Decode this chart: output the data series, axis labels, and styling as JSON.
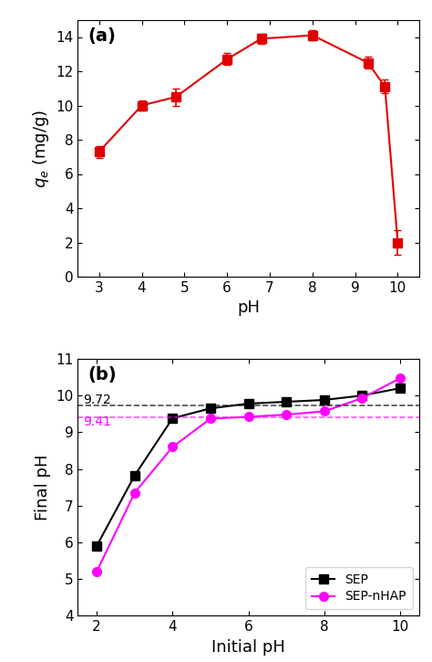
{
  "panel_a": {
    "x": [
      3,
      4,
      4.8,
      6,
      6.8,
      8,
      9.3,
      9.7,
      10
    ],
    "y": [
      7.3,
      10.0,
      10.5,
      12.7,
      13.9,
      14.1,
      12.5,
      11.1,
      2.0
    ],
    "yerr": [
      0.35,
      0.3,
      0.5,
      0.35,
      0.3,
      0.3,
      0.35,
      0.4,
      0.7
    ],
    "color": "#e00000",
    "marker": "s",
    "markersize": 7,
    "linewidth": 1.5,
    "xlabel": "pH",
    "ylabel": "q_e (mg/g)",
    "xlim": [
      2.5,
      10.5
    ],
    "ylim": [
      0,
      15
    ],
    "yticks": [
      0,
      2,
      4,
      6,
      8,
      10,
      12,
      14
    ],
    "xticks": [
      3,
      4,
      5,
      6,
      7,
      8,
      9,
      10
    ],
    "label": "(a)"
  },
  "panel_b": {
    "sep_x": [
      2,
      3,
      4,
      5,
      6,
      7,
      8,
      9,
      10
    ],
    "sep_y": [
      5.9,
      7.82,
      9.38,
      9.65,
      9.78,
      9.83,
      9.88,
      10.0,
      10.2
    ],
    "nhap_x": [
      2,
      3,
      4,
      5,
      6,
      7,
      8,
      9,
      10
    ],
    "nhap_y": [
      5.2,
      7.35,
      8.6,
      9.37,
      9.42,
      9.48,
      9.57,
      9.93,
      10.47
    ],
    "sep_color": "#000000",
    "nhap_color": "#ff00ff",
    "sep_marker": "s",
    "nhap_marker": "o",
    "markersize": 7,
    "linewidth": 1.5,
    "xlabel": "Initial pH",
    "ylabel": "Final pH",
    "xlim": [
      1.5,
      10.5
    ],
    "ylim": [
      4,
      11
    ],
    "yticks": [
      4,
      5,
      6,
      7,
      8,
      9,
      10,
      11
    ],
    "xticks": [
      2,
      4,
      6,
      8,
      10
    ],
    "sep_label": "SEP",
    "nhap_label": "SEP-nHAP",
    "hline_sep": 9.72,
    "hline_nhap": 9.41,
    "label": "(b)"
  }
}
